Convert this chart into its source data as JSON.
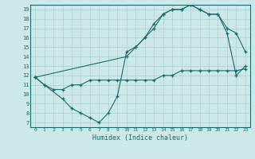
{
  "xlabel": "Humidex (Indice chaleur)",
  "bg_color": "#cce8e8",
  "grid_color": "#aacfcf",
  "line_color": "#1a6b6b",
  "xlim": [
    -0.5,
    23.5
  ],
  "ylim": [
    6.5,
    19.5
  ],
  "xticks": [
    0,
    1,
    2,
    3,
    4,
    5,
    6,
    7,
    8,
    9,
    10,
    11,
    12,
    13,
    14,
    15,
    16,
    17,
    18,
    19,
    20,
    21,
    22,
    23
  ],
  "yticks": [
    7,
    8,
    9,
    10,
    11,
    12,
    13,
    14,
    15,
    16,
    17,
    18,
    19
  ],
  "line1_x": [
    0,
    1,
    2,
    3,
    4,
    5,
    6,
    7,
    8,
    9,
    10,
    11,
    12,
    13,
    14,
    15,
    16,
    17,
    18,
    19,
    20,
    21,
    22,
    23
  ],
  "line1_y": [
    11.8,
    11.0,
    10.5,
    10.5,
    11.0,
    11.0,
    11.5,
    11.5,
    11.5,
    11.5,
    11.5,
    11.5,
    11.5,
    11.5,
    12.0,
    12.0,
    12.5,
    12.5,
    12.5,
    12.5,
    12.5,
    12.5,
    12.5,
    12.7
  ],
  "line2_x": [
    0,
    1,
    3,
    4,
    5,
    6,
    7,
    8,
    9,
    10,
    11,
    12,
    13,
    14,
    15,
    16,
    17,
    18,
    19,
    20,
    21,
    22,
    23
  ],
  "line2_y": [
    11.8,
    11.0,
    9.5,
    8.5,
    8.0,
    7.5,
    7.0,
    8.0,
    9.8,
    14.5,
    15.0,
    16.0,
    17.0,
    18.5,
    19.0,
    19.0,
    19.5,
    19.0,
    18.5,
    18.5,
    16.5,
    12.0,
    13.0
  ],
  "line3_x": [
    0,
    10,
    11,
    12,
    13,
    14,
    15,
    16,
    17,
    18,
    19,
    20,
    21,
    22,
    23
  ],
  "line3_y": [
    11.8,
    14.0,
    15.0,
    16.0,
    17.5,
    18.5,
    19.0,
    19.0,
    19.5,
    19.0,
    18.5,
    18.5,
    17.0,
    16.5,
    14.5
  ]
}
